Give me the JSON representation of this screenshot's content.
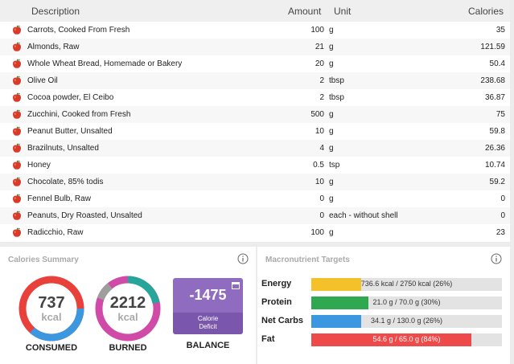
{
  "table": {
    "headers": {
      "description": "Description",
      "amount": "Amount",
      "unit": "Unit",
      "calories": "Calories"
    },
    "rows": [
      {
        "description": "Carrots, Cooked From Fresh",
        "amount": "100",
        "unit": "g",
        "calories": "35"
      },
      {
        "description": "Almonds, Raw",
        "amount": "21",
        "unit": "g",
        "calories": "121.59"
      },
      {
        "description": "Whole Wheat Bread, Homemade or Bakery",
        "amount": "20",
        "unit": "g",
        "calories": "50.4"
      },
      {
        "description": "Olive Oil",
        "amount": "2",
        "unit": "tbsp",
        "calories": "238.68"
      },
      {
        "description": "Cocoa powder, El Ceibo",
        "amount": "2",
        "unit": "tbsp",
        "calories": "36.87"
      },
      {
        "description": "Zucchini, Cooked from Fresh",
        "amount": "500",
        "unit": "g",
        "calories": "75"
      },
      {
        "description": "Peanut Butter, Unsalted",
        "amount": "10",
        "unit": "g",
        "calories": "59.8"
      },
      {
        "description": "Brazilnuts, Unsalted",
        "amount": "4",
        "unit": "g",
        "calories": "26.36"
      },
      {
        "description": "Honey",
        "amount": "0.5",
        "unit": "tsp",
        "calories": "10.74"
      },
      {
        "description": "Chocolate, 85% todis",
        "amount": "10",
        "unit": "g",
        "calories": "59.2"
      },
      {
        "description": "Fennel Bulb, Raw",
        "amount": "0",
        "unit": "g",
        "calories": "0"
      },
      {
        "description": "Peanuts, Dry Roasted, Unsalted",
        "amount": "0",
        "unit": "each - without shell",
        "calories": "0"
      },
      {
        "description": "Radicchio, Raw",
        "amount": "100",
        "unit": "g",
        "calories": "23"
      }
    ],
    "row_icon": "apple-icon"
  },
  "summary": {
    "title": "Calories Summary",
    "consumed": {
      "value": "737",
      "unit": "kcal",
      "label": "CONSUMED"
    },
    "burned": {
      "value": "2212",
      "unit": "kcal",
      "label": "BURNED"
    },
    "balance": {
      "value": "-1475",
      "sub_line1": "Calorie",
      "sub_line2": "Deficit",
      "label": "BALANCE"
    },
    "info_icon": "info-icon"
  },
  "macros": {
    "title": "Macronutrient Targets",
    "items": [
      {
        "label": "Energy",
        "text": "736.6 kcal / 2750 kcal (26%)",
        "fraction": 0.26,
        "color": "#f4c12a"
      },
      {
        "label": "Protein",
        "text": "21.0 g / 70.0 g (30%)",
        "fraction": 0.3,
        "color": "#2fa84f"
      },
      {
        "label": "Net Carbs",
        "text": "34.1 g / 130.0 g (26%)",
        "fraction": 0.26,
        "color": "#3a97e0"
      },
      {
        "label": "Fat",
        "text": "54.6 g / 65.0 g (84%)",
        "fraction": 0.84,
        "color": "#ef4a4a"
      }
    ]
  },
  "colors": {
    "consumed_red": "#e8403a",
    "consumed_blue": "#3a97e0",
    "burned_pink": "#d04aa8",
    "burned_teal": "#26a69a",
    "burned_gray": "#9e9e9e",
    "balance_purple": "#8f6cc0"
  }
}
